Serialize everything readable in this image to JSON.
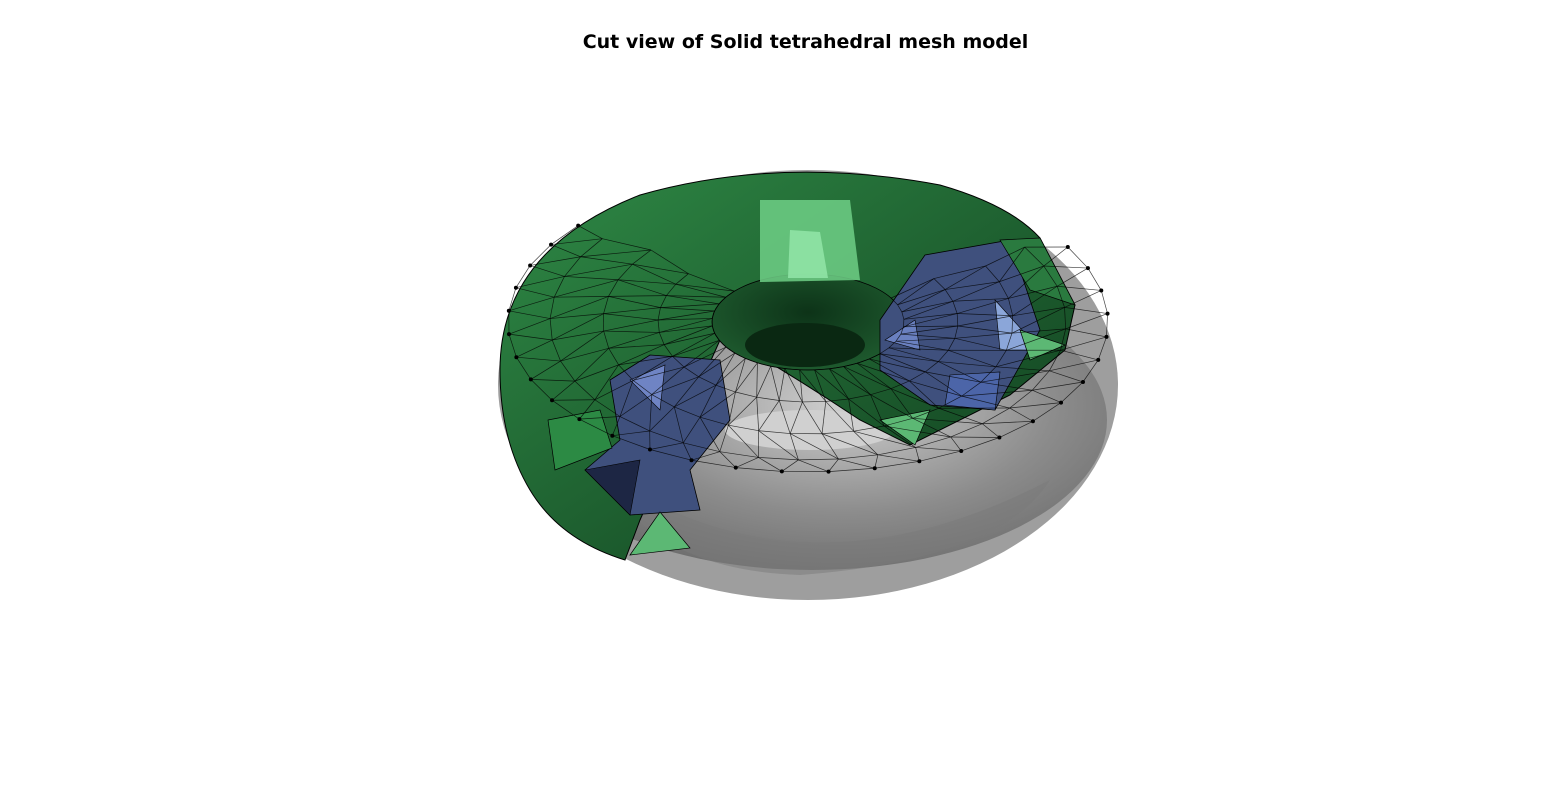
{
  "figure": {
    "title": "Cut view of Solid tetrahedral mesh model"
  },
  "colors": {
    "background": "#ffffff",
    "surface_green": "#2e8b47",
    "surface_green_light": "#7fdc98",
    "surface_green_dark": "#0f3a1c",
    "interior_blue": "#5a70b0",
    "interior_blue_dark": "#1e2a4a",
    "cutaway_gray": "#8c8c8c",
    "edge": "#000000"
  }
}
